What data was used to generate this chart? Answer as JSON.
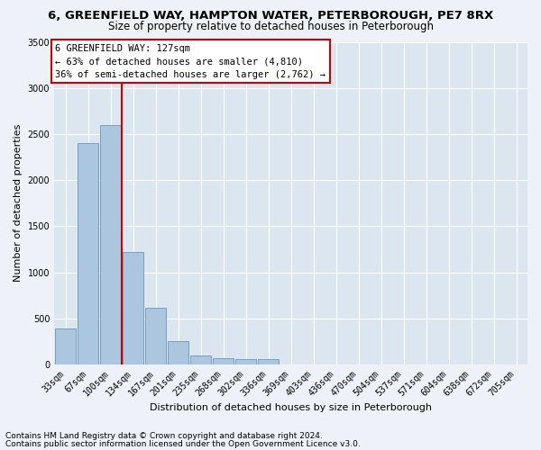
{
  "title": "6, GREENFIELD WAY, HAMPTON WATER, PETERBOROUGH, PE7 8RX",
  "subtitle": "Size of property relative to detached houses in Peterborough",
  "xlabel": "Distribution of detached houses by size in Peterborough",
  "ylabel": "Number of detached properties",
  "categories": [
    "33sqm",
    "67sqm",
    "100sqm",
    "134sqm",
    "167sqm",
    "201sqm",
    "235sqm",
    "268sqm",
    "302sqm",
    "336sqm",
    "369sqm",
    "403sqm",
    "436sqm",
    "470sqm",
    "504sqm",
    "537sqm",
    "571sqm",
    "604sqm",
    "638sqm",
    "672sqm",
    "705sqm"
  ],
  "values": [
    390,
    2400,
    2600,
    1220,
    620,
    250,
    100,
    70,
    60,
    55,
    0,
    0,
    0,
    0,
    0,
    0,
    0,
    0,
    0,
    0,
    0
  ],
  "bar_color": "#adc6e0",
  "bar_edge_color": "#6699bb",
  "vline_color": "#cc0000",
  "annotation_text": "6 GREENFIELD WAY: 127sqm\n← 63% of detached houses are smaller (4,810)\n36% of semi-detached houses are larger (2,762) →",
  "annotation_box_color": "#ffffff",
  "annotation_box_edge_color": "#cc0000",
  "ylim": [
    0,
    3500
  ],
  "yticks": [
    0,
    500,
    1000,
    1500,
    2000,
    2500,
    3000,
    3500
  ],
  "footer1": "Contains HM Land Registry data © Crown copyright and database right 2024.",
  "footer2": "Contains public sector information licensed under the Open Government Licence v3.0.",
  "background_color": "#eef2f8",
  "plot_bg_color": "#dce6f0",
  "grid_color": "#ffffff",
  "title_fontsize": 9.5,
  "subtitle_fontsize": 8.5,
  "ylabel_fontsize": 8,
  "xlabel_fontsize": 8,
  "tick_fontsize": 7,
  "footer_fontsize": 6.5,
  "ann_fontsize": 7.5
}
